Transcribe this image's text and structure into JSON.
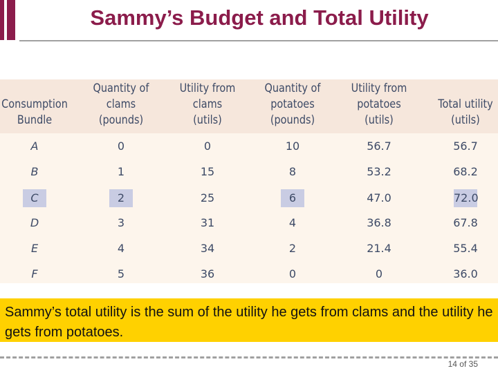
{
  "header": {
    "title": "Sammy’s Budget and Total Utility"
  },
  "table": {
    "headers": [
      [
        "Consumption",
        "Bundle"
      ],
      [
        "Quantity of",
        "clams",
        "(pounds)"
      ],
      [
        "Utility from",
        "clams",
        "(utils)"
      ],
      [
        "Quantity of",
        "potatoes",
        "(pounds)"
      ],
      [
        "Utility from",
        "potatoes",
        "(utils)"
      ],
      [
        "Total utility",
        "(utils)"
      ]
    ],
    "rows": [
      [
        "A",
        "0",
        "0",
        "10",
        "56.7",
        "56.7"
      ],
      [
        "B",
        "1",
        "15",
        "8",
        "53.2",
        "68.2"
      ],
      [
        "C",
        "2",
        "25",
        "6",
        "47.0",
        "72.0"
      ],
      [
        "D",
        "3",
        "31",
        "4",
        "36.8",
        "67.8"
      ],
      [
        "E",
        "4",
        "34",
        "2",
        "21.4",
        "55.4"
      ],
      [
        "F",
        "5",
        "36",
        "0",
        "0",
        "36.0"
      ]
    ]
  },
  "caption": "Sammy’s total utility is the sum of the utility he gets from clams and the utility he gets from potatoes.",
  "footer": {
    "page": "14 of 35"
  }
}
